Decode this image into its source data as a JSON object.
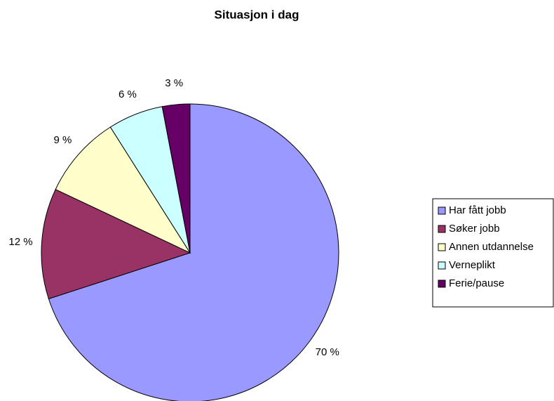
{
  "chart_data": {
    "type": "pie",
    "title": "Situasjon i dag",
    "categories": [
      "Har fått jobb",
      "Søker jobb",
      "Annen utdannelse",
      "Verneplikt",
      "Ferie/pause"
    ],
    "values": [
      70,
      12,
      9,
      6,
      3
    ],
    "value_labels": [
      "70 %",
      "12 %",
      "9 %",
      "6 %",
      "3 %"
    ],
    "colors": [
      "#9999ff",
      "#993366",
      "#ffffcc",
      "#ccffff",
      "#660066"
    ],
    "legend": "right"
  }
}
